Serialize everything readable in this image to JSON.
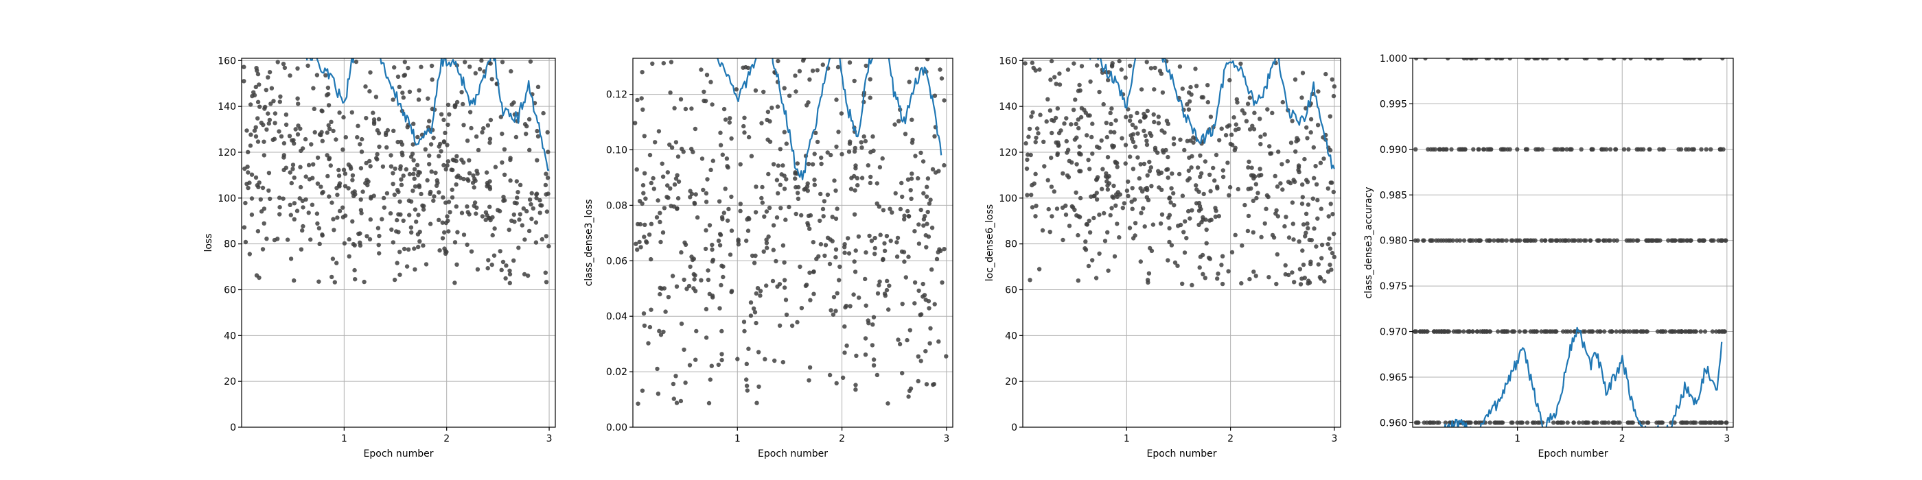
{
  "chart_data": [
    {
      "type": "scatter",
      "xlabel": "Epoch number",
      "ylabel": "loss",
      "xlim": [
        0,
        3.06
      ],
      "ylim": [
        0,
        161
      ],
      "xticks": [
        1,
        2,
        3
      ],
      "yticks": [
        0,
        20,
        40,
        60,
        80,
        100,
        120,
        140,
        160
      ],
      "yformat": 0,
      "grid": true,
      "scatter": {
        "n": 620,
        "center": 112,
        "spread": 24,
        "trend": -8,
        "seed": 11,
        "min": 62,
        "max": 160
      },
      "line": {
        "start": 150,
        "path": [
          [
            0.0,
            175
          ],
          [
            0.7,
            162
          ],
          [
            0.9,
            150
          ],
          [
            1.0,
            140
          ],
          [
            1.1,
            165
          ],
          [
            1.3,
            168
          ],
          [
            1.45,
            150
          ],
          [
            1.55,
            140
          ],
          [
            1.7,
            125
          ],
          [
            1.85,
            130
          ],
          [
            1.95,
            160
          ],
          [
            2.1,
            158
          ],
          [
            2.25,
            140
          ],
          [
            2.35,
            150
          ],
          [
            2.45,
            165
          ],
          [
            2.55,
            138
          ],
          [
            2.7,
            135
          ],
          [
            2.8,
            150
          ],
          [
            2.95,
            120
          ],
          [
            3.0,
            113
          ]
        ]
      }
    },
    {
      "type": "scatter",
      "xlabel": "Epoch number",
      "ylabel": "class_dense3_loss",
      "xlim": [
        0,
        3.06
      ],
      "ylim": [
        0,
        0.133
      ],
      "xticks": [
        1,
        2,
        3
      ],
      "yticks": [
        0.0,
        0.02,
        0.04,
        0.06,
        0.08,
        0.1,
        0.12
      ],
      "yformat": 2,
      "grid": true,
      "scatter": {
        "n": 600,
        "center": 0.072,
        "spread": 0.032,
        "trend": 0,
        "seed": 29,
        "min": 0.008,
        "max": 0.133
      },
      "line": {
        "start": 0.14,
        "path": [
          [
            0.0,
            0.145
          ],
          [
            0.7,
            0.14
          ],
          [
            0.9,
            0.128
          ],
          [
            1.0,
            0.118
          ],
          [
            1.15,
            0.13
          ],
          [
            1.3,
            0.14
          ],
          [
            1.45,
            0.115
          ],
          [
            1.55,
            0.095
          ],
          [
            1.62,
            0.09
          ],
          [
            1.75,
            0.11
          ],
          [
            1.85,
            0.13
          ],
          [
            1.95,
            0.14
          ],
          [
            2.05,
            0.115
          ],
          [
            2.15,
            0.105
          ],
          [
            2.25,
            0.13
          ],
          [
            2.4,
            0.145
          ],
          [
            2.5,
            0.12
          ],
          [
            2.6,
            0.11
          ],
          [
            2.7,
            0.125
          ],
          [
            2.8,
            0.13
          ],
          [
            2.9,
            0.11
          ],
          [
            2.95,
            0.098
          ]
        ]
      }
    },
    {
      "type": "scatter",
      "xlabel": "Epoch number",
      "ylabel": "loc_dense6_loss",
      "xlim": [
        0,
        3.06
      ],
      "ylim": [
        0,
        161
      ],
      "xticks": [
        1,
        2,
        3
      ],
      "yticks": [
        0,
        20,
        40,
        60,
        80,
        100,
        120,
        140,
        160
      ],
      "yformat": 0,
      "grid": true,
      "scatter": {
        "n": 620,
        "center": 110,
        "spread": 24,
        "trend": -9,
        "seed": 47,
        "min": 62,
        "max": 160
      },
      "line": {
        "start": 150,
        "path": [
          [
            0.0,
            175
          ],
          [
            0.7,
            162
          ],
          [
            0.9,
            150
          ],
          [
            1.0,
            140
          ],
          [
            1.1,
            165
          ],
          [
            1.3,
            168
          ],
          [
            1.45,
            150
          ],
          [
            1.55,
            138
          ],
          [
            1.7,
            125
          ],
          [
            1.85,
            130
          ],
          [
            1.95,
            158
          ],
          [
            2.1,
            156
          ],
          [
            2.25,
            140
          ],
          [
            2.35,
            150
          ],
          [
            2.45,
            165
          ],
          [
            2.55,
            138
          ],
          [
            2.7,
            133
          ],
          [
            2.8,
            148
          ],
          [
            2.95,
            118
          ],
          [
            3.0,
            112
          ]
        ]
      }
    },
    {
      "type": "scatter",
      "xlabel": "Epoch number",
      "ylabel": "class_dense3_accuracy",
      "xlim": [
        0,
        3.06
      ],
      "ylim": [
        0.9595,
        1.0
      ],
      "xticks": [
        1,
        2,
        3
      ],
      "yticks": [
        0.96,
        0.965,
        0.97,
        0.975,
        0.98,
        0.985,
        0.99,
        0.995,
        1.0
      ],
      "yformat": 3,
      "grid": true,
      "levels": [
        {
          "value": 1.0,
          "n": 45,
          "seed": 3
        },
        {
          "value": 0.99,
          "n": 95,
          "seed": 5
        },
        {
          "value": 0.98,
          "n": 140,
          "seed": 7
        },
        {
          "value": 0.97,
          "n": 170,
          "seed": 9
        },
        {
          "value": 0.96,
          "n": 140,
          "seed": 13
        }
      ],
      "line": {
        "path": [
          [
            0.3,
            0.9595
          ],
          [
            0.45,
            0.9597
          ],
          [
            0.6,
            0.959
          ],
          [
            0.8,
            0.962
          ],
          [
            0.95,
            0.9655
          ],
          [
            1.05,
            0.968
          ],
          [
            1.15,
            0.964
          ],
          [
            1.25,
            0.959
          ],
          [
            1.4,
            0.962
          ],
          [
            1.5,
            0.968
          ],
          [
            1.58,
            0.9705
          ],
          [
            1.7,
            0.966
          ],
          [
            1.75,
            0.968
          ],
          [
            1.85,
            0.963
          ],
          [
            2.0,
            0.967
          ],
          [
            2.1,
            0.962
          ],
          [
            2.2,
            0.959
          ],
          [
            2.45,
            0.959
          ],
          [
            2.6,
            0.964
          ],
          [
            2.7,
            0.962
          ],
          [
            2.8,
            0.966
          ],
          [
            2.9,
            0.963
          ],
          [
            2.95,
            0.9685
          ]
        ]
      }
    }
  ]
}
